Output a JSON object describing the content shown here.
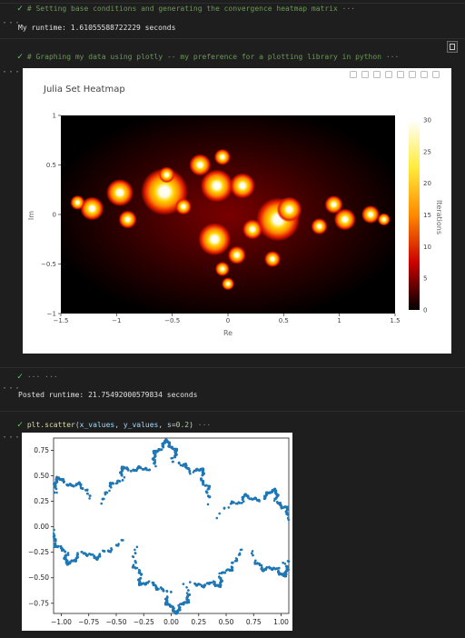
{
  "cells": {
    "cell1": {
      "comment": "# Setting base conditions and generating the convergence heatmap matrix",
      "ellipsis": "···",
      "output": "My runtime: 1.61055588722229 seconds"
    },
    "cell2": {
      "comment": "# Graphing my data using plotly -- my preference for a plotting library in python",
      "ellipsis": "···"
    },
    "cell3": {
      "collapsed": "···",
      "ellipsis": "···",
      "output": "Posted runtime: 21.75492000579834 seconds"
    },
    "cell4": {
      "code": {
        "fn": "plt.scatter",
        "open": "(",
        "arg1": "x_values",
        "comma1": ", ",
        "arg2": "y_values",
        "comma2": ", ",
        "kw": "s",
        "eq": "=",
        "val": "0.2",
        "close": ")"
      },
      "ellipsis": "···"
    }
  },
  "gutter_dots": "···",
  "colors": {
    "check": "#6ccb6c",
    "comment": "#6a9955",
    "bg": "#1e1e1e"
  },
  "heatmap": {
    "chart_data": {
      "type": "heatmap",
      "title": "Julia Set Heatmap",
      "xlabel": "Re",
      "ylabel": "Im",
      "xlim": [
        -1.5,
        1.5
      ],
      "ylim": [
        -1,
        1
      ],
      "x_ticks": [
        "−1.5",
        "−1",
        "−0.5",
        "0",
        "0.5",
        "1",
        "1.5"
      ],
      "y_ticks": [
        "1",
        "0.5",
        "0",
        "−0.5",
        "−1"
      ],
      "colorbar": {
        "title": "Iterations",
        "ticks": [
          "30",
          "25",
          "20",
          "15",
          "10",
          "5",
          "0"
        ],
        "range": [
          0,
          30
        ],
        "colorscale": "hot"
      }
    },
    "toolbar_icons": [
      "camera-icon",
      "zoom-icon",
      "pan-icon",
      "zoom-in-icon",
      "zoom-out-icon",
      "autoscale-icon",
      "reset-axes-icon",
      "plotly-logo-icon"
    ]
  },
  "scatter": {
    "chart_data": {
      "type": "scatter",
      "xlim": [
        -1.07,
        1.07
      ],
      "ylim": [
        -0.85,
        0.87
      ],
      "x_ticks": [
        "−1.00",
        "−0.75",
        "−0.50",
        "−0.25",
        "0.00",
        "0.25",
        "0.50",
        "0.75",
        "1.00"
      ],
      "y_ticks": [
        "0.75",
        "0.50",
        "0.25",
        "0.00",
        "−0.25",
        "−0.50",
        "−0.75"
      ],
      "marker_color": "#1f77b4",
      "marker_size": 0.2
    }
  }
}
